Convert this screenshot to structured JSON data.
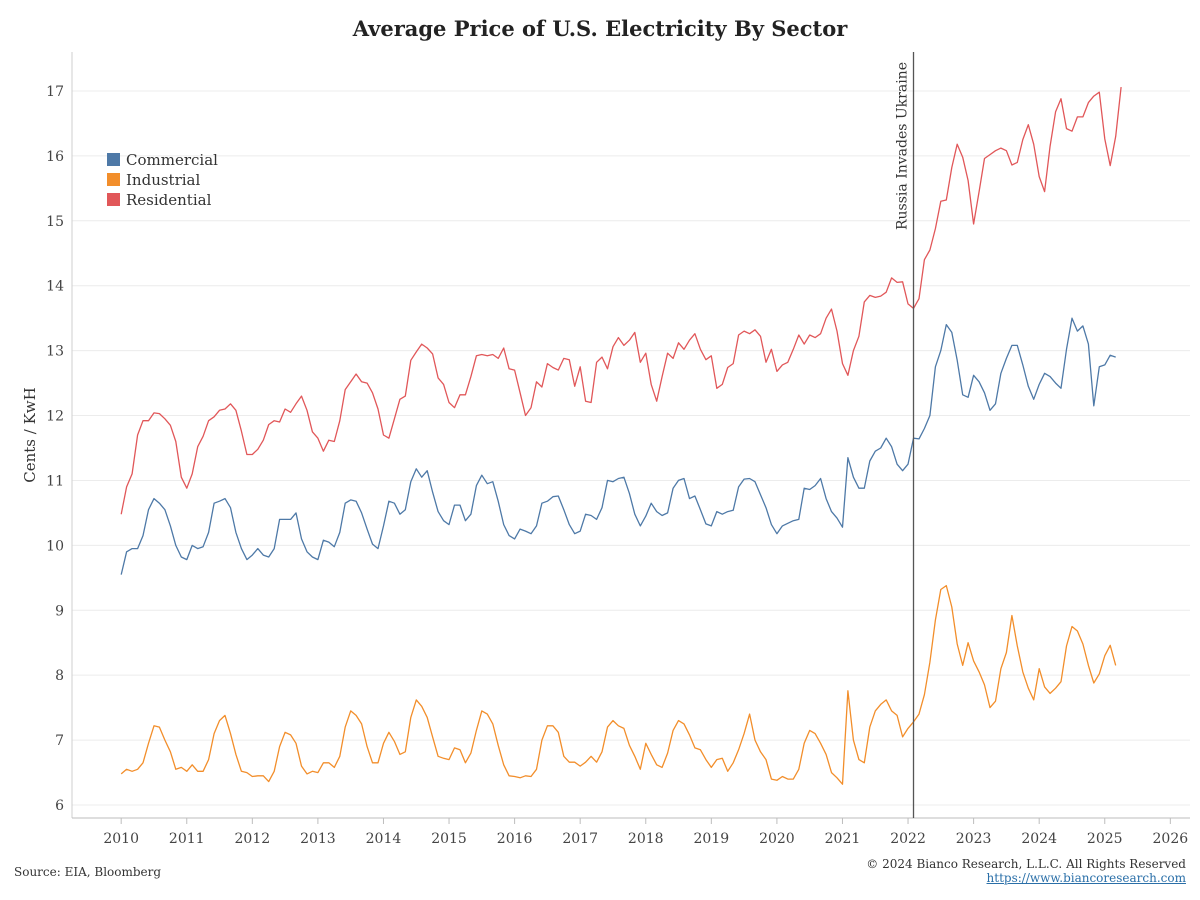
{
  "header": {
    "title": "Average Price of U.S. Electricity By Sector"
  },
  "footer": {
    "source": "Source: EIA, Bloomberg",
    "copyright": "© 2024 Bianco Research, L.L.C. All Rights Reserved",
    "link": "https://www.biancoresearch.com"
  },
  "chart_data": {
    "type": "line",
    "title": "Average Price of U.S. Electricity By Sector",
    "ylabel": "Cents / KwH",
    "xlabel": "",
    "xlim": [
      2009.25,
      2026.3
    ],
    "ylim": [
      5.8,
      17.6
    ],
    "x_ticks": [
      "2010",
      "2011",
      "2012",
      "2013",
      "2014",
      "2015",
      "2016",
      "2017",
      "2018",
      "2019",
      "2020",
      "2021",
      "2022",
      "2023",
      "2024",
      "2025",
      "2026"
    ],
    "y_ticks": [
      "6",
      "7",
      "8",
      "9",
      "10",
      "11",
      "12",
      "13",
      "14",
      "15",
      "16",
      "17"
    ],
    "grid": true,
    "legend_position": "top-left",
    "x_start": "2010-01",
    "x_step": "monthly",
    "annotation": {
      "label": "Russia Invades Ukraine",
      "x": "2022-02"
    },
    "series": [
      {
        "name": "Commercial",
        "color": "#4e79a7",
        "values": [
          9.55,
          9.9,
          9.95,
          9.95,
          10.15,
          10.55,
          10.72,
          10.65,
          10.55,
          10.3,
          10.0,
          9.82,
          9.78,
          10.0,
          9.95,
          9.98,
          10.2,
          10.65,
          10.68,
          10.72,
          10.58,
          10.2,
          9.95,
          9.78,
          9.85,
          9.95,
          9.85,
          9.82,
          9.95,
          10.4,
          10.4,
          10.4,
          10.5,
          10.1,
          9.9,
          9.82,
          9.78,
          10.08,
          10.05,
          9.98,
          10.2,
          10.65,
          10.7,
          10.68,
          10.5,
          10.25,
          10.02,
          9.95,
          10.3,
          10.68,
          10.65,
          10.48,
          10.55,
          10.98,
          11.18,
          11.05,
          11.15,
          10.82,
          10.52,
          10.38,
          10.32,
          10.62,
          10.62,
          10.38,
          10.48,
          10.92,
          11.08,
          10.95,
          10.98,
          10.68,
          10.32,
          10.15,
          10.1,
          10.25,
          10.22,
          10.18,
          10.3,
          10.65,
          10.68,
          10.75,
          10.76,
          10.55,
          10.32,
          10.18,
          10.22,
          10.48,
          10.46,
          10.4,
          10.58,
          11.0,
          10.98,
          11.03,
          11.05,
          10.8,
          10.48,
          10.3,
          10.45,
          10.65,
          10.52,
          10.46,
          10.5,
          10.88,
          11.0,
          11.03,
          10.72,
          10.76,
          10.55,
          10.33,
          10.3,
          10.52,
          10.48,
          10.52,
          10.54,
          10.9,
          11.02,
          11.03,
          10.98,
          10.78,
          10.58,
          10.32,
          10.18,
          10.3,
          10.34,
          10.38,
          10.4,
          10.88,
          10.86,
          10.92,
          11.03,
          10.72,
          10.52,
          10.42,
          10.28,
          11.35,
          11.05,
          10.88,
          10.88,
          11.3,
          11.45,
          11.5,
          11.65,
          11.52,
          11.25,
          11.15,
          11.25,
          11.65,
          11.64,
          11.8,
          12.0,
          12.75,
          13.0,
          13.4,
          13.28,
          12.85,
          12.32,
          12.28,
          12.62,
          12.52,
          12.35,
          12.08,
          12.18,
          12.65,
          12.88,
          13.08,
          13.08,
          12.78,
          12.45,
          12.25,
          12.48,
          12.65,
          12.6,
          12.5,
          12.42,
          13.02,
          13.5,
          13.3,
          13.38,
          13.1,
          12.15,
          12.75,
          12.78,
          12.93,
          12.9
        ]
      },
      {
        "name": "Industrial",
        "color": "#f28e2b",
        "values": [
          6.48,
          6.55,
          6.52,
          6.55,
          6.65,
          6.95,
          7.22,
          7.2,
          7.0,
          6.82,
          6.55,
          6.58,
          6.52,
          6.62,
          6.52,
          6.52,
          6.7,
          7.1,
          7.3,
          7.38,
          7.1,
          6.78,
          6.52,
          6.5,
          6.44,
          6.45,
          6.45,
          6.36,
          6.52,
          6.9,
          7.12,
          7.08,
          6.95,
          6.6,
          6.48,
          6.52,
          6.5,
          6.65,
          6.65,
          6.58,
          6.75,
          7.2,
          7.45,
          7.38,
          7.25,
          6.9,
          6.65,
          6.65,
          6.95,
          7.12,
          6.98,
          6.78,
          6.82,
          7.35,
          7.62,
          7.52,
          7.35,
          7.05,
          6.75,
          6.72,
          6.7,
          6.88,
          6.85,
          6.65,
          6.8,
          7.15,
          7.45,
          7.4,
          7.25,
          6.92,
          6.62,
          6.45,
          6.44,
          6.42,
          6.45,
          6.44,
          6.55,
          7.0,
          7.22,
          7.22,
          7.12,
          6.75,
          6.66,
          6.66,
          6.6,
          6.66,
          6.75,
          6.66,
          6.82,
          7.2,
          7.3,
          7.22,
          7.18,
          6.92,
          6.75,
          6.55,
          6.95,
          6.78,
          6.62,
          6.58,
          6.8,
          7.15,
          7.3,
          7.25,
          7.08,
          6.88,
          6.85,
          6.7,
          6.58,
          6.7,
          6.72,
          6.52,
          6.65,
          6.85,
          7.1,
          7.4,
          7.0,
          6.82,
          6.7,
          6.4,
          6.38,
          6.44,
          6.4,
          6.4,
          6.55,
          6.95,
          7.15,
          7.1,
          6.95,
          6.78,
          6.5,
          6.42,
          6.32,
          7.76,
          7.0,
          6.7,
          6.65,
          7.2,
          7.45,
          7.55,
          7.62,
          7.45,
          7.38,
          7.05,
          7.18,
          7.28,
          7.4,
          7.7,
          8.2,
          8.85,
          9.32,
          9.38,
          9.05,
          8.48,
          8.15,
          8.5,
          8.22,
          8.05,
          7.85,
          7.5,
          7.6,
          8.1,
          8.35,
          8.92,
          8.45,
          8.05,
          7.8,
          7.62,
          8.1,
          7.82,
          7.72,
          7.8,
          7.9,
          8.45,
          8.75,
          8.68,
          8.48,
          8.15,
          7.88,
          8.02,
          8.3,
          8.46,
          8.15
        ]
      },
      {
        "name": "Residential",
        "color": "#e15759",
        "values": [
          10.48,
          10.9,
          11.1,
          11.7,
          11.92,
          11.92,
          12.04,
          12.03,
          11.95,
          11.85,
          11.6,
          11.05,
          10.88,
          11.1,
          11.52,
          11.68,
          11.92,
          11.98,
          12.08,
          12.1,
          12.18,
          12.08,
          11.76,
          11.4,
          11.4,
          11.48,
          11.62,
          11.86,
          11.92,
          11.9,
          12.1,
          12.05,
          12.18,
          12.3,
          12.08,
          11.75,
          11.65,
          11.45,
          11.62,
          11.6,
          11.92,
          12.4,
          12.52,
          12.64,
          12.52,
          12.5,
          12.35,
          12.1,
          11.7,
          11.65,
          11.95,
          12.25,
          12.3,
          12.85,
          12.98,
          13.1,
          13.04,
          12.95,
          12.58,
          12.48,
          12.2,
          12.12,
          12.32,
          12.32,
          12.6,
          12.92,
          12.94,
          12.92,
          12.94,
          12.88,
          13.04,
          12.72,
          12.7,
          12.35,
          12.0,
          12.12,
          12.52,
          12.44,
          12.8,
          12.74,
          12.7,
          12.88,
          12.86,
          12.45,
          12.75,
          12.22,
          12.2,
          12.82,
          12.9,
          12.72,
          13.06,
          13.2,
          13.08,
          13.16,
          13.28,
          12.82,
          12.96,
          12.48,
          12.22,
          12.6,
          12.96,
          12.88,
          13.12,
          13.02,
          13.16,
          13.26,
          13.02,
          12.86,
          12.92,
          12.42,
          12.48,
          12.74,
          12.8,
          13.24,
          13.3,
          13.26,
          13.32,
          13.22,
          12.82,
          13.02,
          12.68,
          12.78,
          12.82,
          13.02,
          13.24,
          13.1,
          13.24,
          13.2,
          13.26,
          13.5,
          13.64,
          13.3,
          12.8,
          12.62,
          13.0,
          13.22,
          13.75,
          13.85,
          13.82,
          13.84,
          13.9,
          14.12,
          14.05,
          14.06,
          13.72,
          13.65,
          13.8,
          14.4,
          14.55,
          14.88,
          15.3,
          15.32,
          15.82,
          16.18,
          15.98,
          15.62,
          14.95,
          15.45,
          15.96,
          16.02,
          16.08,
          16.12,
          16.08,
          15.86,
          15.9,
          16.25,
          16.48,
          16.18,
          15.68,
          15.45,
          16.15,
          16.68,
          16.88,
          16.42,
          16.38,
          16.6,
          16.6,
          16.82,
          16.92,
          16.98,
          16.26,
          15.85,
          16.3,
          17.06
        ]
      }
    ]
  }
}
